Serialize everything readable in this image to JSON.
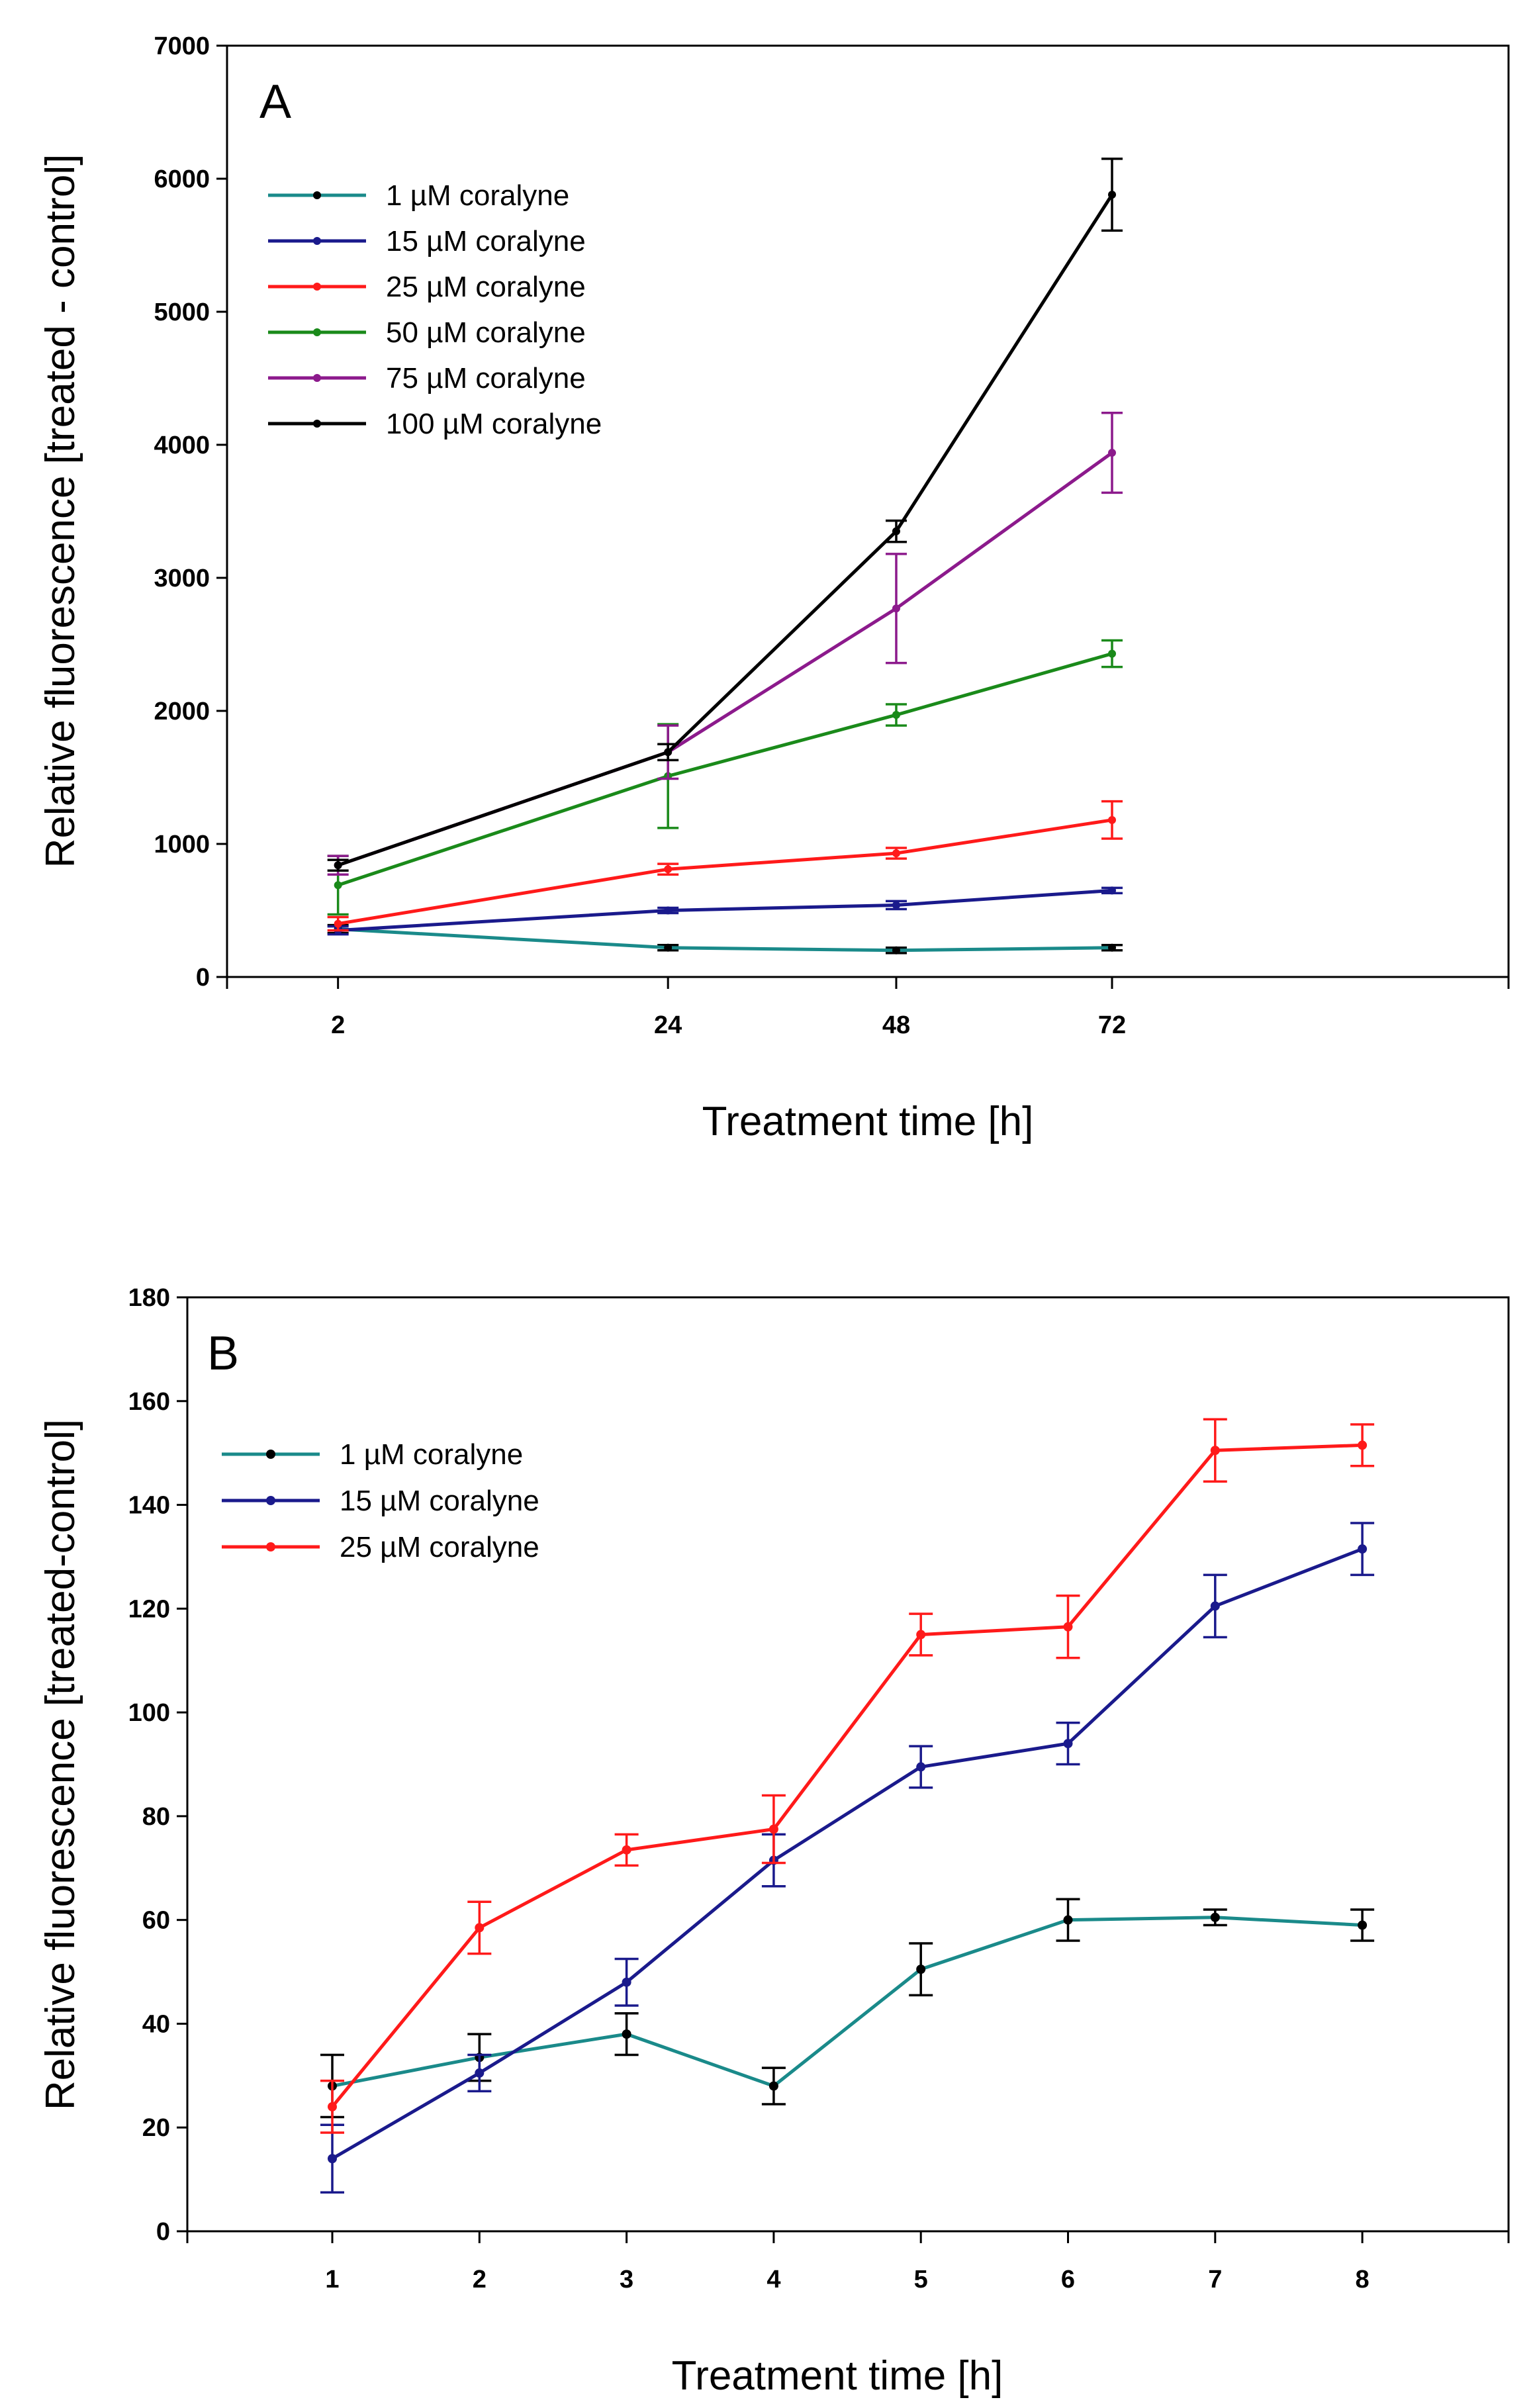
{
  "chart_data": [
    {
      "panel": "A",
      "type": "line",
      "error_bars": true,
      "xlabel": "Treatment time [h]",
      "ylabel": "Relative fluorescence [treated - control]",
      "categories": [
        "2",
        "24",
        "48",
        "72"
      ],
      "x_tick_labels": [
        "2",
        "24",
        "48",
        "72"
      ],
      "y_ticks": [
        0,
        1000,
        2000,
        3000,
        4000,
        5000,
        6000,
        7000
      ],
      "ylim": [
        0,
        7000
      ],
      "legend_position": "top-left",
      "series": [
        {
          "name": "1 µM coralyne",
          "color": "#1a8a8a",
          "marker_color": "#000000",
          "values": [
            360,
            220,
            200,
            220
          ],
          "errors": [
            30,
            20,
            20,
            20
          ]
        },
        {
          "name": "15 µM coralyne",
          "color": "#1a1a8c",
          "marker_color": "#1a1a8c",
          "values": [
            350,
            500,
            540,
            650
          ],
          "errors": [
            30,
            20,
            30,
            20
          ]
        },
        {
          "name": "25 µM coralyne",
          "color": "#ff1a1a",
          "marker_color": "#ff1a1a",
          "values": [
            400,
            810,
            930,
            1180
          ],
          "errors": [
            50,
            40,
            40,
            140
          ]
        },
        {
          "name": "50 µM coralyne",
          "color": "#1a8a1a",
          "marker_color": "#1a8a1a",
          "values": [
            690,
            1510,
            1970,
            2430
          ],
          "errors": [
            220,
            390,
            80,
            100
          ]
        },
        {
          "name": "75 µM coralyne",
          "color": "#8c1a8c",
          "marker_color": "#8c1a8c",
          "values": [
            840,
            1690,
            2770,
            3940
          ],
          "errors": [
            70,
            200,
            410,
            300
          ]
        },
        {
          "name": "100 µM coralyne",
          "color": "#000000",
          "marker_color": "#000000",
          "values": [
            840,
            1690,
            3350,
            5880
          ],
          "errors": [
            40,
            60,
            80,
            270
          ]
        }
      ]
    },
    {
      "panel": "B",
      "type": "line",
      "error_bars": true,
      "xlabel": "Treatment time [h]",
      "ylabel": "Relative fluorescence [treated-control]",
      "categories": [
        "1",
        "2",
        "3",
        "4",
        "5",
        "6",
        "7",
        "8"
      ],
      "x_tick_labels": [
        "1",
        "2",
        "3",
        "4",
        "5",
        "6",
        "7",
        "8"
      ],
      "y_ticks": [
        0,
        20,
        40,
        60,
        80,
        100,
        120,
        140,
        160,
        180
      ],
      "ylim": [
        0,
        180
      ],
      "legend_position": "top-left",
      "series": [
        {
          "name": "1 µM coralyne",
          "color": "#1a8a8a",
          "marker_color": "#000000",
          "values": [
            28,
            33.5,
            38,
            28,
            50.5,
            60,
            60.5,
            59
          ],
          "errors": [
            6,
            4.5,
            4,
            3.5,
            5,
            4,
            1.5,
            3
          ]
        },
        {
          "name": "15 µM coralyne",
          "color": "#1a1a8c",
          "marker_color": "#1a1a8c",
          "values": [
            14,
            30.5,
            48,
            71.5,
            89.5,
            94,
            120.5,
            131.5
          ],
          "errors": [
            6.5,
            3.5,
            4.5,
            5,
            4,
            4,
            6,
            5
          ]
        },
        {
          "name": "25 µM coralyne",
          "color": "#ff1a1a",
          "marker_color": "#ff1a1a",
          "values": [
            24,
            58.5,
            73.5,
            77.5,
            115,
            116.5,
            150.5,
            151.5
          ],
          "errors": [
            5,
            5,
            3,
            6.5,
            4,
            6,
            6,
            4
          ]
        }
      ]
    }
  ]
}
